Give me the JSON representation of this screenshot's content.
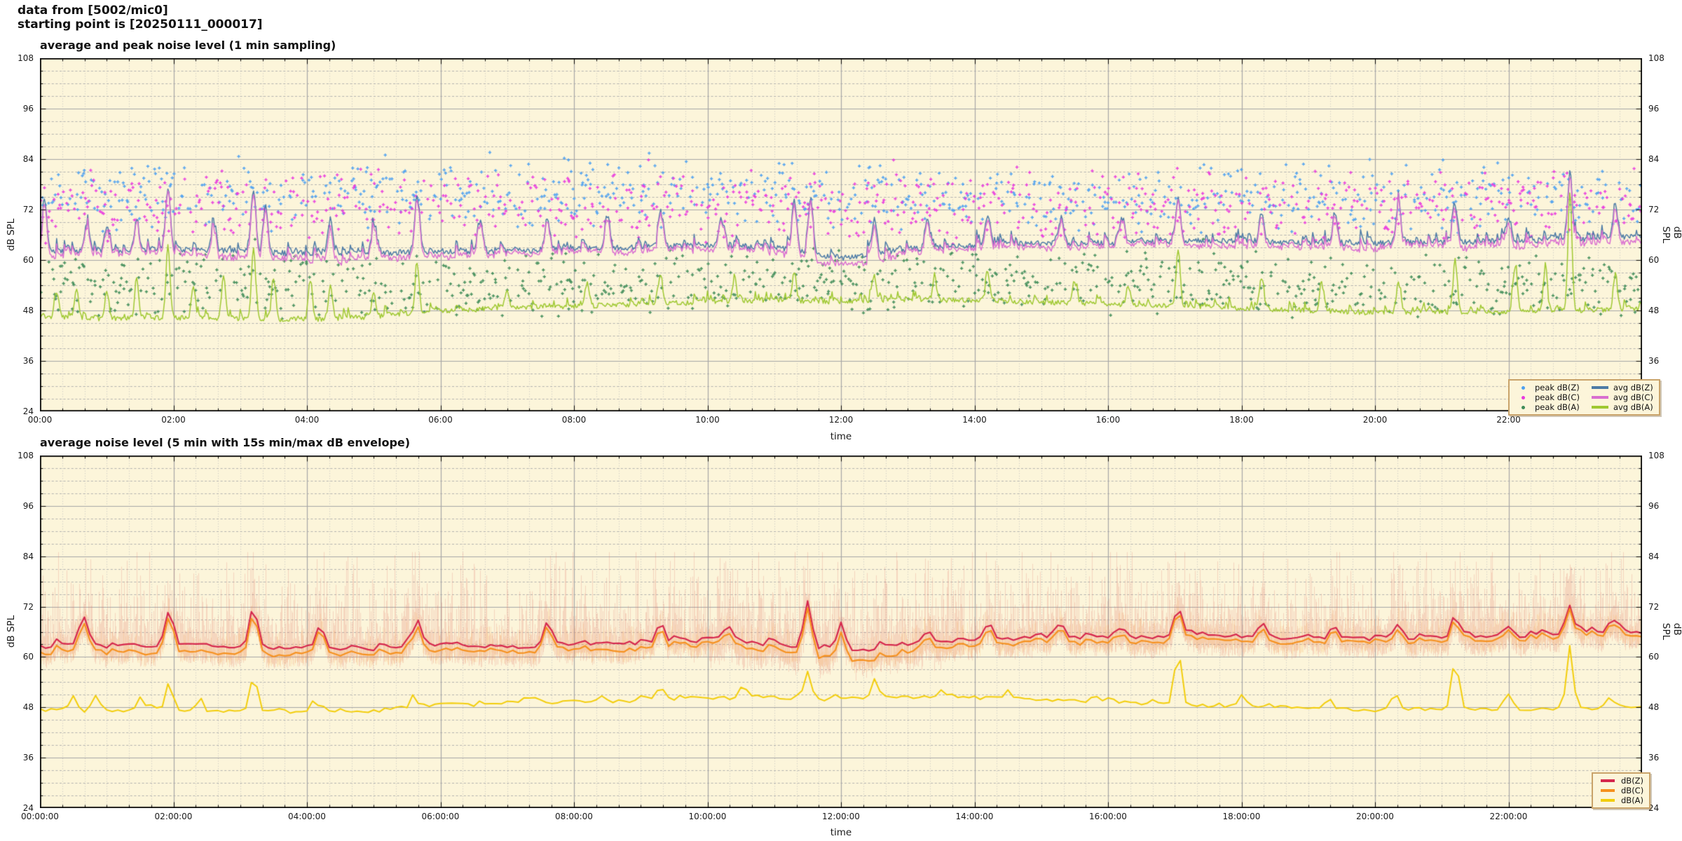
{
  "header": {
    "line1": "data from [5002/mic0]",
    "line2": "starting point is [20250111_000017]"
  },
  "style": {
    "plot_bg": "#fcf5da",
    "grid_major": "#a5a5a5",
    "grid_minor_h": "#a9a9a9",
    "grid_minor_v": "#bdbdbd",
    "axis_color": "#000000",
    "text_color": "#1a1a1a",
    "legend_border": "#c9a36a"
  },
  "chart_data": [
    {
      "type": "line+scatter",
      "title": "average and peak noise level (1 min sampling)",
      "xlabel": "time",
      "ylabel_left": "dB SPL",
      "ylabel_right": "dB SPL",
      "ylim": [
        24,
        108
      ],
      "yticks": [
        24,
        36,
        48,
        60,
        72,
        84,
        96,
        108
      ],
      "yminor_step": 3,
      "x_range_hours": [
        0,
        24
      ],
      "xtick_hours": [
        0,
        2,
        4,
        6,
        8,
        10,
        12,
        14,
        16,
        18,
        20,
        22
      ],
      "xtick_labels": [
        "00:00",
        "02:00",
        "04:00",
        "06:00",
        "08:00",
        "10:00",
        "12:00",
        "14:00",
        "16:00",
        "18:00",
        "20:00",
        "22:00"
      ],
      "xminor_step_min": 20,
      "grid": true,
      "legend_position": "bottom-right",
      "series": [
        {
          "name": "avg dB(Z)",
          "color": "#4d7ba6",
          "width": 1.5,
          "step_min": 1,
          "seed": 11,
          "anchors": [
            62,
            62,
            62.5,
            62,
            61.5,
            61.5,
            62.2,
            62,
            62.5,
            63,
            63.5,
            63,
            60.5,
            62.5,
            63.5,
            64,
            64,
            64.5,
            64.5,
            64,
            64,
            64.2,
            64.5,
            65,
            65.5
          ],
          "jitter": 0.7,
          "bump_prob": 0.1,
          "bump_max": 5.5,
          "bump_decay": 0.55,
          "spike_width_h": 0.035,
          "spikes": [
            [
              0.07,
              73.5
            ],
            [
              0.7,
              69
            ],
            [
              1.0,
              68
            ],
            [
              1.45,
              69
            ],
            [
              1.92,
              77
            ],
            [
              2.6,
              68
            ],
            [
              3.2,
              77
            ],
            [
              3.38,
              72.5
            ],
            [
              4.35,
              70
            ],
            [
              5.0,
              68
            ],
            [
              5.65,
              75.5
            ],
            [
              6.6,
              69
            ],
            [
              7.6,
              70
            ],
            [
              8.5,
              69
            ],
            [
              9.3,
              71
            ],
            [
              10.2,
              70
            ],
            [
              11.3,
              73
            ],
            [
              11.55,
              74
            ],
            [
              12.5,
              70
            ],
            [
              13.3,
              69
            ],
            [
              14.2,
              71
            ],
            [
              15.3,
              70
            ],
            [
              16.2,
              69.5
            ],
            [
              17.05,
              74.5
            ],
            [
              18.3,
              71
            ],
            [
              19.4,
              70.5
            ],
            [
              20.35,
              73
            ],
            [
              21.2,
              73
            ],
            [
              22.0,
              70
            ],
            [
              22.92,
              80
            ],
            [
              23.6,
              72
            ]
          ]
        },
        {
          "name": "avg dB(C)",
          "color": "#d96fd0",
          "width": 1.5,
          "derived_from": 0,
          "seed": 12,
          "offset_mean": 1.5,
          "offset_jitter": 0.35,
          "extra_dip": {
            "from": 11.6,
            "to": 12.9,
            "amount": 1.3
          }
        },
        {
          "name": "avg dB(A)",
          "color": "#9fc832",
          "width": 1.5,
          "step_min": 1,
          "seed": 13,
          "anchors": [
            46.5,
            46,
            46.3,
            46,
            45.8,
            46.5,
            48,
            48.5,
            49,
            49.5,
            50,
            50.5,
            50,
            50.5,
            50.5,
            50,
            49.5,
            49,
            48.5,
            48,
            47.5,
            47.5,
            47.8,
            48,
            48.5
          ],
          "jitter": 0.6,
          "bump_prob": 0.12,
          "bump_max": 4.5,
          "bump_decay": 0.5,
          "spike_width_h": 0.03,
          "spikes": [
            [
              0.25,
              52
            ],
            [
              0.55,
              53
            ],
            [
              1.0,
              52
            ],
            [
              1.45,
              55
            ],
            [
              1.92,
              63
            ],
            [
              2.3,
              54
            ],
            [
              2.75,
              56
            ],
            [
              3.2,
              63
            ],
            [
              3.5,
              56
            ],
            [
              4.05,
              55
            ],
            [
              4.35,
              54
            ],
            [
              5.0,
              52
            ],
            [
              5.65,
              58.5
            ],
            [
              7.0,
              53
            ],
            [
              8.2,
              54
            ],
            [
              9.3,
              56
            ],
            [
              10.4,
              55
            ],
            [
              11.3,
              57
            ],
            [
              12.5,
              56
            ],
            [
              13.4,
              55
            ],
            [
              14.2,
              56
            ],
            [
              15.5,
              55
            ],
            [
              16.3,
              54
            ],
            [
              17.05,
              62.5
            ],
            [
              18.3,
              56
            ],
            [
              19.2,
              54
            ],
            [
              20.35,
              55
            ],
            [
              21.2,
              60
            ],
            [
              22.1,
              58
            ],
            [
              22.55,
              58
            ],
            [
              22.92,
              76
            ],
            [
              23.6,
              57
            ]
          ]
        }
      ],
      "scatter": [
        {
          "name": "peak dB(Z)",
          "color": "#4da0f0",
          "per_min_prob": 0.55,
          "range": [
            66,
            84.5
          ],
          "seed": 21,
          "outlier_prob": 0.004,
          "outlier_max": 86.5,
          "day_shift": 0
        },
        {
          "name": "peak dB(C)",
          "color": "#e93ade",
          "per_min_prob": 0.55,
          "range": [
            63.5,
            82.5
          ],
          "seed": 22,
          "outlier_prob": 0.003,
          "outlier_max": 84.5,
          "day_shift": 0
        },
        {
          "name": "peak dB(A)",
          "color": "#3f8c58",
          "per_min_prob": 0.6,
          "range": [
            45,
            62.5
          ],
          "seed": 23,
          "outlier_prob": 0.004,
          "outlier_max": 66,
          "day_shift": 1.5
        }
      ]
    },
    {
      "type": "line+envelope",
      "title": "average noise level (5 min with 15s min/max dB envelope)",
      "xlabel": "time",
      "ylabel_left": "dB SPL",
      "ylabel_right": "dB SPL",
      "ylim": [
        24,
        108
      ],
      "yticks": [
        24,
        36,
        48,
        60,
        72,
        84,
        96,
        108
      ],
      "yminor_step": 3,
      "x_range_hours": [
        0,
        24
      ],
      "xtick_hours": [
        0,
        2,
        4,
        6,
        8,
        10,
        12,
        14,
        16,
        18,
        20,
        22
      ],
      "xtick_labels": [
        "00:00:00",
        "02:00:00",
        "04:00:00",
        "06:00:00",
        "08:00:00",
        "10:00:00",
        "12:00:00",
        "14:00:00",
        "16:00:00",
        "18:00:00",
        "20:00:00",
        "22:00:00"
      ],
      "xminor_step_min": 20,
      "grid": true,
      "legend_position": "bottom-right",
      "series": [
        {
          "name": "dB(Z)",
          "color": "#d5274d",
          "width": 2.2,
          "step_min": 5,
          "seed": 31,
          "anchors": [
            62.5,
            62.5,
            63,
            62.5,
            61.8,
            61.8,
            62.5,
            62.2,
            62.8,
            63.2,
            63.5,
            63,
            61,
            63,
            63.8,
            64.2,
            64.5,
            65,
            65,
            64.5,
            64.3,
            64.5,
            64.8,
            65.2,
            66
          ],
          "jitter": 0.45,
          "bump_prob": 0.22,
          "bump_max": 2.6,
          "bump_decay": 0.6,
          "spike_width_h": 0.06,
          "spikes": [
            [
              0.66,
              69
            ],
            [
              1.94,
              71
            ],
            [
              3.2,
              72.2
            ],
            [
              4.2,
              67
            ],
            [
              5.65,
              68
            ],
            [
              7.6,
              67
            ],
            [
              9.3,
              67.5
            ],
            [
              10.3,
              67
            ],
            [
              11.5,
              73.5
            ],
            [
              12.0,
              68
            ],
            [
              13.3,
              66.5
            ],
            [
              14.2,
              68
            ],
            [
              15.3,
              67
            ],
            [
              16.2,
              67
            ],
            [
              17.05,
              71.5
            ],
            [
              18.3,
              68
            ],
            [
              19.4,
              67.5
            ],
            [
              20.35,
              68
            ],
            [
              21.2,
              69
            ],
            [
              22.0,
              67.5
            ],
            [
              22.92,
              72.5
            ],
            [
              23.6,
              68
            ]
          ]
        },
        {
          "name": "dB(C)",
          "color": "#f59120",
          "width": 2.2,
          "derived_from": 0,
          "seed": 32,
          "offset_mean": 1.8,
          "offset_jitter": 0.3,
          "extra_dip": {
            "from": 11.6,
            "to": 12.9,
            "amount": 1.0
          }
        },
        {
          "name": "dB(A)",
          "color": "#f2cd0c",
          "width": 2.0,
          "step_min": 5,
          "seed": 33,
          "anchors": [
            47.5,
            47,
            47.2,
            46.8,
            46.5,
            47,
            48.2,
            48.8,
            49.2,
            49.6,
            50.2,
            50.2,
            49.8,
            50.5,
            50.2,
            49.8,
            49.2,
            48.6,
            48,
            47.6,
            47.4,
            47.3,
            47.5,
            47.5,
            48
          ],
          "jitter": 0.4,
          "bump_prob": 0.2,
          "bump_max": 2.2,
          "bump_decay": 0.55,
          "spike_width_h": 0.05,
          "spikes": [
            [
              0.5,
              50.5
            ],
            [
              0.85,
              50.5
            ],
            [
              1.5,
              50
            ],
            [
              1.94,
              54.5
            ],
            [
              2.4,
              50
            ],
            [
              3.2,
              55.7
            ],
            [
              4.1,
              50
            ],
            [
              5.6,
              51
            ],
            [
              7.3,
              50.5
            ],
            [
              8.4,
              51
            ],
            [
              9.3,
              52
            ],
            [
              10.5,
              52.5
            ],
            [
              11.5,
              56
            ],
            [
              12.5,
              54
            ],
            [
              13.5,
              52
            ],
            [
              14.5,
              52
            ],
            [
              15.8,
              51
            ],
            [
              17.05,
              62
            ],
            [
              18.0,
              50
            ],
            [
              19.3,
              50
            ],
            [
              20.3,
              51
            ],
            [
              21.2,
              59.5
            ],
            [
              22.0,
              50.5
            ],
            [
              22.92,
              61.5
            ],
            [
              23.5,
              50
            ]
          ]
        }
      ],
      "envelope": {
        "seed": 41,
        "pink": {
          "color": "#e0685c",
          "alpha": 0.22,
          "mean_rise": 4.8,
          "big_prob": 0.05,
          "max_cap": 85
        },
        "orange": {
          "color": "#f59120",
          "alpha": 0.15,
          "mean_rise": 2.0
        },
        "low_window": {
          "from": 10.0,
          "to": 13.5,
          "extra_drop": 2.5
        }
      }
    }
  ]
}
